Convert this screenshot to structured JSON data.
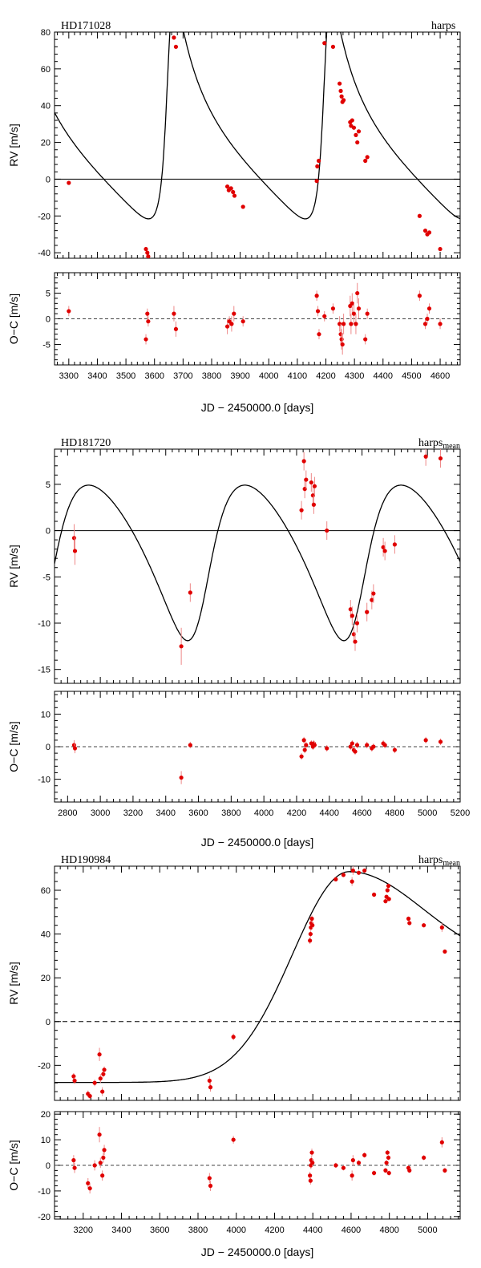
{
  "chart_data": [
    {
      "type": "scatter",
      "title": "HD171028",
      "instrument": "harps",
      "instrument_sub": "",
      "xlabel": "JD − 2450000.0 [days]",
      "rv_panel": {
        "ylabel": "RV [m/s]",
        "ylim": [
          -43,
          80
        ],
        "yticks": [
          -40,
          -20,
          0,
          20,
          40,
          60,
          80
        ],
        "zero_line": "solid",
        "points": [
          [
            3300,
            -2,
            1
          ],
          [
            3570,
            -38,
            1
          ],
          [
            3575,
            -40,
            1
          ],
          [
            3578,
            -42,
            1
          ],
          [
            3668,
            77,
            1
          ],
          [
            3675,
            72,
            1
          ],
          [
            3855,
            -4,
            1
          ],
          [
            3860,
            -6,
            1
          ],
          [
            3868,
            -5,
            1
          ],
          [
            3875,
            -7,
            1
          ],
          [
            3880,
            -9,
            1
          ],
          [
            3910,
            -15,
            1
          ],
          [
            4168,
            -1,
            1
          ],
          [
            4170,
            7,
            1
          ],
          [
            4175,
            10,
            1
          ],
          [
            4195,
            74,
            1
          ],
          [
            4225,
            72,
            1
          ],
          [
            4248,
            52,
            1
          ],
          [
            4252,
            48,
            1
          ],
          [
            4255,
            45,
            1
          ],
          [
            4258,
            42,
            1
          ],
          [
            4262,
            43,
            1
          ],
          [
            4285,
            31,
            1
          ],
          [
            4288,
            29,
            1
          ],
          [
            4292,
            32,
            1
          ],
          [
            4298,
            28,
            1
          ],
          [
            4305,
            24,
            1
          ],
          [
            4310,
            20,
            1
          ],
          [
            4315,
            26,
            1
          ],
          [
            4338,
            10,
            1
          ],
          [
            4345,
            12,
            1
          ],
          [
            4528,
            -20,
            1
          ],
          [
            4548,
            -28,
            1
          ],
          [
            4555,
            -30,
            1
          ],
          [
            4562,
            -29,
            1
          ],
          [
            4600,
            -38,
            1
          ]
        ],
        "curve": "rv_a"
      },
      "oc_panel": {
        "ylabel": "O−C [m/s]",
        "ylim": [
          -9,
          9
        ],
        "yticks": [
          -5,
          0,
          5
        ],
        "points": [
          [
            3300,
            1.5,
            1
          ],
          [
            3570,
            -4,
            1
          ],
          [
            3575,
            1,
            1
          ],
          [
            3578,
            -0.5,
            1
          ],
          [
            3668,
            1,
            1.5
          ],
          [
            3675,
            -2,
            1.5
          ],
          [
            3855,
            -1.5,
            1.5
          ],
          [
            3862,
            -0.5,
            1
          ],
          [
            3870,
            -1,
            1.5
          ],
          [
            3878,
            1,
            1.5
          ],
          [
            3910,
            -0.5,
            1
          ],
          [
            4168,
            4.5,
            1
          ],
          [
            4172,
            1.5,
            1
          ],
          [
            4176,
            -3,
            1
          ],
          [
            4195,
            0.5,
            1
          ],
          [
            4225,
            2,
            1
          ],
          [
            4248,
            -1,
            1.5
          ],
          [
            4252,
            -3,
            2
          ],
          [
            4255,
            -4,
            2
          ],
          [
            4258,
            -5,
            2
          ],
          [
            4262,
            -1,
            2
          ],
          [
            4285,
            2.5,
            2
          ],
          [
            4288,
            -1,
            2
          ],
          [
            4292,
            3,
            2
          ],
          [
            4298,
            1,
            2
          ],
          [
            4305,
            -1,
            2
          ],
          [
            4310,
            5,
            2
          ],
          [
            4315,
            2,
            2
          ],
          [
            4338,
            -4,
            1
          ],
          [
            4345,
            1,
            1
          ],
          [
            4528,
            4.5,
            1
          ],
          [
            4548,
            -1,
            1
          ],
          [
            4555,
            0,
            1
          ],
          [
            4562,
            2,
            1
          ],
          [
            4600,
            -1,
            1
          ]
        ]
      },
      "xlim": [
        3250,
        4670
      ],
      "xticks": [
        3300,
        3400,
        3500,
        3600,
        3700,
        3800,
        3900,
        4000,
        4100,
        4200,
        4300,
        4400,
        4500,
        4600
      ]
    },
    {
      "type": "scatter",
      "title": "HD181720",
      "instrument": "harps",
      "instrument_sub": "mean",
      "xlabel": "JD − 2450000.0 [days]",
      "rv_panel": {
        "ylabel": "RV [m/s]",
        "ylim": [
          -16.5,
          8.8
        ],
        "yticks": [
          -15,
          -10,
          -5,
          0,
          5
        ],
        "zero_line": "solid",
        "points": [
          [
            2840,
            -0.8,
            1.5
          ],
          [
            2845,
            -2.2,
            1.5
          ],
          [
            3495,
            -12.5,
            2
          ],
          [
            3550,
            -6.7,
            1
          ],
          [
            4230,
            2.2,
            1
          ],
          [
            4245,
            7.5,
            1
          ],
          [
            4250,
            4.5,
            1
          ],
          [
            4258,
            5.5,
            1
          ],
          [
            4290,
            5.2,
            1
          ],
          [
            4300,
            3.8,
            1
          ],
          [
            4305,
            2.8,
            1
          ],
          [
            4310,
            4.8,
            1
          ],
          [
            4385,
            0,
            1
          ],
          [
            4530,
            -8.5,
            1
          ],
          [
            4540,
            -9.2,
            1
          ],
          [
            4550,
            -11.2,
            1
          ],
          [
            4558,
            -12,
            1
          ],
          [
            4570,
            -10,
            1
          ],
          [
            4630,
            -8.8,
            1
          ],
          [
            4660,
            -7.5,
            1
          ],
          [
            4670,
            -6.8,
            1
          ],
          [
            4730,
            -1.8,
            1
          ],
          [
            4740,
            -2.2,
            1
          ],
          [
            4800,
            -1.5,
            1
          ],
          [
            4990,
            8,
            1
          ],
          [
            5080,
            7.8,
            1
          ]
        ],
        "curve": "rv_b"
      },
      "oc_panel": {
        "ylabel": "O−C [m/s]",
        "ylim": [
          -17,
          17
        ],
        "yticks": [
          -10,
          0,
          10
        ],
        "points": [
          [
            2840,
            0.5,
            1.5
          ],
          [
            2845,
            -0.5,
            1.5
          ],
          [
            3495,
            -9.5,
            2
          ],
          [
            3550,
            0.5,
            1
          ],
          [
            4230,
            -3,
            1
          ],
          [
            4245,
            2,
            1
          ],
          [
            4250,
            -1,
            1
          ],
          [
            4258,
            0.5,
            1
          ],
          [
            4290,
            1,
            1
          ],
          [
            4300,
            0,
            1
          ],
          [
            4305,
            1,
            1
          ],
          [
            4310,
            0.5,
            1
          ],
          [
            4385,
            -0.5,
            1
          ],
          [
            4530,
            0,
            1
          ],
          [
            4540,
            1,
            1
          ],
          [
            4550,
            -1,
            1
          ],
          [
            4558,
            -1.5,
            1
          ],
          [
            4570,
            0.5,
            1
          ],
          [
            4630,
            0.5,
            1
          ],
          [
            4660,
            -0.5,
            1
          ],
          [
            4670,
            0,
            1
          ],
          [
            4730,
            1,
            1
          ],
          [
            4740,
            0.5,
            1
          ],
          [
            4800,
            -1,
            1
          ],
          [
            4990,
            2,
            1
          ],
          [
            5080,
            1.5,
            1
          ]
        ]
      },
      "xlim": [
        2720,
        5200
      ],
      "xticks": [
        2800,
        3000,
        3200,
        3400,
        3600,
        3800,
        4000,
        4200,
        4400,
        4600,
        4800,
        5000,
        5200
      ]
    },
    {
      "type": "scatter",
      "title": "HD190984",
      "instrument": "harps",
      "instrument_sub": "mean",
      "xlabel": "JD − 2450000.0 [days]",
      "rv_panel": {
        "ylabel": "RV [m/s]",
        "ylim": [
          -36,
          71
        ],
        "yticks": [
          -20,
          0,
          20,
          40,
          60
        ],
        "zero_line": "dashed",
        "points": [
          [
            3150,
            -25,
            1.5
          ],
          [
            3155,
            -27,
            1.5
          ],
          [
            3225,
            -33,
            1.5
          ],
          [
            3235,
            -34,
            1.5
          ],
          [
            3260,
            -28,
            1.5
          ],
          [
            3285,
            -15,
            3
          ],
          [
            3290,
            -26,
            2
          ],
          [
            3300,
            -32,
            2
          ],
          [
            3305,
            -24,
            1.5
          ],
          [
            3310,
            -22,
            1.5
          ],
          [
            3860,
            -27,
            2
          ],
          [
            3865,
            -30,
            2
          ],
          [
            3985,
            -7,
            1.5
          ],
          [
            4385,
            37,
            1.5
          ],
          [
            4388,
            40,
            1.5
          ],
          [
            4390,
            43,
            1.5
          ],
          [
            4392,
            45,
            1.5
          ],
          [
            4395,
            47,
            1.5
          ],
          [
            4398,
            44,
            1.5
          ],
          [
            4520,
            65,
            1
          ],
          [
            4560,
            67,
            1
          ],
          [
            4605,
            64,
            2
          ],
          [
            4610,
            69,
            2
          ],
          [
            4640,
            68,
            1
          ],
          [
            4670,
            69,
            1
          ],
          [
            4720,
            58,
            1
          ],
          [
            4780,
            55,
            1
          ],
          [
            4785,
            57,
            1
          ],
          [
            4790,
            60,
            1
          ],
          [
            4795,
            62,
            1
          ],
          [
            4798,
            56,
            1
          ],
          [
            4900,
            47,
            1
          ],
          [
            4905,
            45,
            1
          ],
          [
            4980,
            44,
            1
          ],
          [
            5075,
            43,
            2
          ],
          [
            5090,
            32,
            1
          ]
        ],
        "curve": "rv_c"
      },
      "oc_panel": {
        "ylabel": "O−C [m/s]",
        "ylim": [
          -21,
          21
        ],
        "yticks": [
          -20,
          -10,
          0,
          10,
          20
        ],
        "points": [
          [
            3150,
            2,
            2
          ],
          [
            3155,
            -1,
            2
          ],
          [
            3225,
            -7,
            2
          ],
          [
            3235,
            -9,
            2
          ],
          [
            3260,
            0,
            2
          ],
          [
            3285,
            12,
            3
          ],
          [
            3290,
            1,
            2
          ],
          [
            3300,
            -4,
            2
          ],
          [
            3305,
            3,
            2
          ],
          [
            3310,
            6,
            2
          ],
          [
            3860,
            -5,
            2
          ],
          [
            3865,
            -8,
            2
          ],
          [
            3985,
            10,
            1.5
          ],
          [
            4385,
            -4,
            1.5
          ],
          [
            4388,
            -6,
            1.5
          ],
          [
            4390,
            0,
            1.5
          ],
          [
            4392,
            2,
            1.5
          ],
          [
            4395,
            5,
            1.5
          ],
          [
            4398,
            1,
            1.5
          ],
          [
            4520,
            0,
            1
          ],
          [
            4560,
            -1,
            1
          ],
          [
            4605,
            -4,
            2
          ],
          [
            4610,
            2,
            2
          ],
          [
            4640,
            1,
            1
          ],
          [
            4670,
            4,
            1
          ],
          [
            4720,
            -3,
            1
          ],
          [
            4780,
            -2,
            1
          ],
          [
            4785,
            1,
            1
          ],
          [
            4790,
            5,
            1
          ],
          [
            4795,
            3,
            1
          ],
          [
            4798,
            -3,
            1
          ],
          [
            4900,
            -1,
            1
          ],
          [
            4905,
            -2,
            1
          ],
          [
            4980,
            3,
            1
          ],
          [
            5075,
            9,
            2
          ],
          [
            5090,
            -2,
            1
          ]
        ]
      },
      "xlim": [
        3050,
        5170
      ],
      "xticks": [
        3200,
        3400,
        3600,
        3800,
        4000,
        4200,
        4400,
        4600,
        4800,
        5000
      ]
    }
  ]
}
